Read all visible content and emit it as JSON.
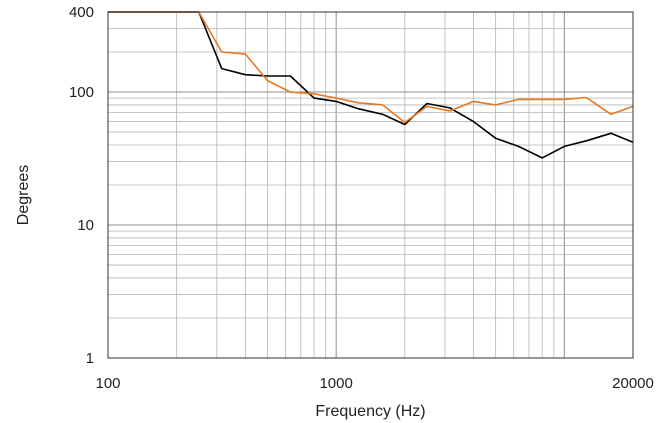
{
  "chart_data": {
    "type": "line",
    "xlabel": "Frequency (Hz)",
    "ylabel": "Degrees",
    "x_scale": "log",
    "y_scale": "log",
    "xlim": [
      100,
      20000
    ],
    "ylim": [
      1,
      400
    ],
    "x_tick_labels": [
      {
        "value": 100,
        "label": "100"
      },
      {
        "value": 1000,
        "label": "1000"
      },
      {
        "value": 20000,
        "label": "20000"
      }
    ],
    "y_tick_labels": [
      {
        "value": 1,
        "label": "1"
      },
      {
        "value": 10,
        "label": "10"
      },
      {
        "value": 100,
        "label": "100"
      },
      {
        "value": 400,
        "label": "400"
      }
    ],
    "grid": true,
    "x": [
      100,
      125,
      160,
      200,
      250,
      315,
      400,
      500,
      630,
      800,
      1000,
      1250,
      1600,
      2000,
      2500,
      3150,
      4000,
      5000,
      6300,
      8000,
      10000,
      12500,
      16000,
      20000
    ],
    "series": [
      {
        "color": "#000000",
        "values": [
          400,
          400,
          400,
          400,
          400,
          150,
          135,
          132,
          132,
          90,
          85,
          75,
          68,
          57,
          82,
          76,
          60,
          45,
          39,
          32,
          39,
          43,
          49,
          42
        ]
      },
      {
        "color": "#e87722",
        "values": [
          400,
          400,
          400,
          400,
          400,
          200,
          193,
          122,
          100,
          97,
          90,
          83,
          80,
          59,
          78,
          72,
          85,
          80,
          88,
          88,
          88,
          91,
          68,
          78
        ]
      }
    ]
  }
}
